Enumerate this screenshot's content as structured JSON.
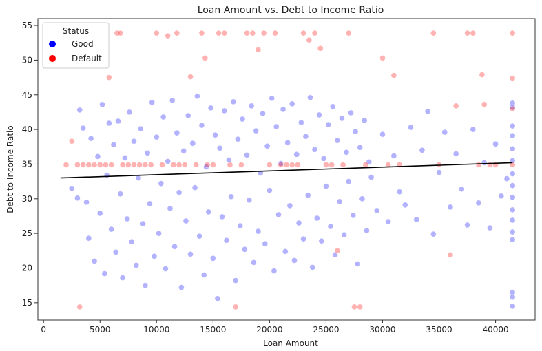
{
  "chart_data": {
    "type": "scatter",
    "title": "Loan Amount vs. Debt to Income Ratio",
    "xlabel": "Loan Amount",
    "ylabel": "Debt to Income Ratio",
    "xlim": [
      -500,
      43500
    ],
    "ylim": [
      12.5,
      56
    ],
    "xticks": [
      0,
      5000,
      10000,
      15000,
      20000,
      25000,
      30000,
      35000,
      40000
    ],
    "yticks": [
      15,
      20,
      25,
      30,
      35,
      40,
      45,
      50,
      55
    ],
    "legend": {
      "title": "Status",
      "placement": "top-left",
      "entries": [
        {
          "label": "Good",
          "color": "#0000ff"
        },
        {
          "label": "Default",
          "color": "#ff0000"
        }
      ]
    },
    "series": [
      {
        "name": "Good",
        "color": "#0000ff",
        "opacity": 0.3,
        "points": [
          [
            2500,
            31.5
          ],
          [
            3000,
            30.1
          ],
          [
            3200,
            42.8
          ],
          [
            3500,
            40.2
          ],
          [
            3800,
            29.5
          ],
          [
            4000,
            24.3
          ],
          [
            4200,
            38.7
          ],
          [
            4500,
            21.0
          ],
          [
            4800,
            36.1
          ],
          [
            5000,
            27.9
          ],
          [
            5200,
            43.6
          ],
          [
            5400,
            19.2
          ],
          [
            5600,
            33.4
          ],
          [
            5800,
            40.9
          ],
          [
            6000,
            25.6
          ],
          [
            6200,
            37.8
          ],
          [
            6400,
            22.3
          ],
          [
            6600,
            41.2
          ],
          [
            6800,
            30.7
          ],
          [
            7000,
            18.6
          ],
          [
            7200,
            35.9
          ],
          [
            7400,
            27.1
          ],
          [
            7600,
            42.5
          ],
          [
            7800,
            23.8
          ],
          [
            8000,
            38.3
          ],
          [
            8200,
            20.4
          ],
          [
            8400,
            33.0
          ],
          [
            8600,
            40.1
          ],
          [
            8800,
            26.4
          ],
          [
            9000,
            17.5
          ],
          [
            9200,
            36.6
          ],
          [
            9400,
            29.3
          ],
          [
            9600,
            43.9
          ],
          [
            9800,
            21.7
          ],
          [
            10000,
            38.9
          ],
          [
            10200,
            25.0
          ],
          [
            10400,
            32.2
          ],
          [
            10600,
            41.8
          ],
          [
            10800,
            19.9
          ],
          [
            11000,
            35.4
          ],
          [
            11200,
            28.6
          ],
          [
            11400,
            44.2
          ],
          [
            11600,
            23.1
          ],
          [
            11800,
            39.5
          ],
          [
            12000,
            30.9
          ],
          [
            12200,
            17.2
          ],
          [
            12400,
            36.9
          ],
          [
            12600,
            26.8
          ],
          [
            12800,
            42.0
          ],
          [
            13000,
            22.0
          ],
          [
            13200,
            38.0
          ],
          [
            13400,
            31.6
          ],
          [
            13600,
            44.8
          ],
          [
            13800,
            24.6
          ],
          [
            14000,
            40.6
          ],
          [
            14200,
            19.0
          ],
          [
            14400,
            34.6
          ],
          [
            14600,
            28.1
          ],
          [
            14800,
            43.1
          ],
          [
            15000,
            21.4
          ],
          [
            15200,
            39.2
          ],
          [
            15400,
            15.6
          ],
          [
            15600,
            37.3
          ],
          [
            15800,
            27.4
          ],
          [
            16000,
            42.7
          ],
          [
            16200,
            24.0
          ],
          [
            16400,
            35.6
          ],
          [
            16600,
            30.3
          ],
          [
            16800,
            44.0
          ],
          [
            17000,
            18.2
          ],
          [
            17200,
            38.6
          ],
          [
            17400,
            26.1
          ],
          [
            17600,
            41.5
          ],
          [
            17800,
            22.7
          ],
          [
            18000,
            36.3
          ],
          [
            18200,
            29.8
          ],
          [
            18400,
            43.4
          ],
          [
            18600,
            20.8
          ],
          [
            18800,
            39.8
          ],
          [
            19000,
            25.3
          ],
          [
            19200,
            33.7
          ],
          [
            19400,
            42.3
          ],
          [
            19600,
            23.5
          ],
          [
            19800,
            37.6
          ],
          [
            20000,
            31.2
          ],
          [
            20200,
            44.5
          ],
          [
            20400,
            19.6
          ],
          [
            20600,
            40.4
          ],
          [
            20800,
            27.7
          ],
          [
            21000,
            35.1
          ],
          [
            21200,
            42.9
          ],
          [
            21400,
            22.4
          ],
          [
            21600,
            38.1
          ],
          [
            21800,
            29.0
          ],
          [
            22000,
            43.7
          ],
          [
            22200,
            21.1
          ],
          [
            22400,
            36.4
          ],
          [
            22600,
            26.5
          ],
          [
            22800,
            41.0
          ],
          [
            23000,
            24.2
          ],
          [
            23200,
            39.0
          ],
          [
            23400,
            30.5
          ],
          [
            23600,
            44.6
          ],
          [
            23800,
            20.1
          ],
          [
            24000,
            37.1
          ],
          [
            24200,
            27.2
          ],
          [
            24400,
            42.1
          ],
          [
            24600,
            23.9
          ],
          [
            24800,
            35.8
          ],
          [
            25000,
            31.8
          ],
          [
            25200,
            40.7
          ],
          [
            25400,
            26.0
          ],
          [
            25600,
            43.3
          ],
          [
            25800,
            21.9
          ],
          [
            26000,
            38.4
          ],
          [
            26200,
            29.6
          ],
          [
            26400,
            41.6
          ],
          [
            26600,
            24.8
          ],
          [
            26800,
            36.7
          ],
          [
            27000,
            32.5
          ],
          [
            27200,
            42.4
          ],
          [
            27400,
            27.6
          ],
          [
            27600,
            39.7
          ],
          [
            27800,
            20.6
          ],
          [
            28000,
            37.4
          ],
          [
            28200,
            30.0
          ],
          [
            28400,
            41.3
          ],
          [
            28600,
            25.4
          ],
          [
            28800,
            35.3
          ],
          [
            29000,
            33.1
          ],
          [
            29500,
            28.3
          ],
          [
            30000,
            39.3
          ],
          [
            30500,
            26.7
          ],
          [
            31000,
            36.2
          ],
          [
            31500,
            31.0
          ],
          [
            32000,
            29.1
          ],
          [
            32500,
            40.3
          ],
          [
            33000,
            27.0
          ],
          [
            33500,
            37.0
          ],
          [
            34000,
            42.6
          ],
          [
            34500,
            24.9
          ],
          [
            35000,
            33.8
          ],
          [
            35500,
            39.6
          ],
          [
            36000,
            28.8
          ],
          [
            36500,
            36.5
          ],
          [
            37000,
            31.4
          ],
          [
            37500,
            26.2
          ],
          [
            38000,
            40.0
          ],
          [
            38500,
            29.4
          ],
          [
            39000,
            35.2
          ],
          [
            39500,
            25.8
          ],
          [
            40000,
            37.9
          ],
          [
            40500,
            30.4
          ],
          [
            41000,
            32.9
          ],
          [
            41500,
            43.8
          ],
          [
            41500,
            40.5
          ],
          [
            41500,
            37.2
          ],
          [
            41500,
            33.6
          ],
          [
            41500,
            30.2
          ],
          [
            41500,
            26.9
          ],
          [
            41500,
            24.1
          ],
          [
            41500,
            16.5
          ],
          [
            41500,
            15.8
          ],
          [
            41500,
            14.5
          ],
          [
            41500,
            43.2
          ],
          [
            41500,
            39.1
          ],
          [
            41500,
            35.5
          ],
          [
            41500,
            31.9
          ],
          [
            41500,
            28.4
          ],
          [
            41500,
            25.2
          ]
        ]
      },
      {
        "name": "Default",
        "color": "#ff0000",
        "opacity": 0.3,
        "points": [
          [
            2000,
            34.9
          ],
          [
            2500,
            38.3
          ],
          [
            3000,
            34.9
          ],
          [
            3200,
            14.4
          ],
          [
            3500,
            34.9
          ],
          [
            4000,
            34.9
          ],
          [
            4500,
            34.9
          ],
          [
            5000,
            34.9
          ],
          [
            5500,
            34.9
          ],
          [
            5800,
            47.5
          ],
          [
            6000,
            34.9
          ],
          [
            6500,
            53.9
          ],
          [
            6800,
            53.9
          ],
          [
            7000,
            34.9
          ],
          [
            7500,
            34.9
          ],
          [
            8000,
            34.9
          ],
          [
            8500,
            34.9
          ],
          [
            9000,
            34.9
          ],
          [
            9500,
            34.9
          ],
          [
            10000,
            53.9
          ],
          [
            10500,
            34.9
          ],
          [
            11000,
            53.5
          ],
          [
            11500,
            34.9
          ],
          [
            11800,
            53.9
          ],
          [
            12000,
            34.9
          ],
          [
            12500,
            34.9
          ],
          [
            13000,
            47.6
          ],
          [
            13500,
            34.9
          ],
          [
            14000,
            53.9
          ],
          [
            14300,
            50.3
          ],
          [
            14500,
            34.9
          ],
          [
            15000,
            34.9
          ],
          [
            15500,
            53.9
          ],
          [
            16000,
            53.9
          ],
          [
            16500,
            34.9
          ],
          [
            17000,
            14.4
          ],
          [
            17500,
            34.9
          ],
          [
            18000,
            53.9
          ],
          [
            18500,
            53.9
          ],
          [
            19000,
            51.5
          ],
          [
            19500,
            53.9
          ],
          [
            20000,
            34.9
          ],
          [
            20500,
            53.9
          ],
          [
            21000,
            34.9
          ],
          [
            21500,
            34.9
          ],
          [
            22000,
            34.9
          ],
          [
            22500,
            34.9
          ],
          [
            23000,
            53.9
          ],
          [
            23500,
            52.9
          ],
          [
            24000,
            53.9
          ],
          [
            24500,
            51.7
          ],
          [
            25000,
            34.9
          ],
          [
            25500,
            34.9
          ],
          [
            26000,
            22.5
          ],
          [
            26500,
            34.9
          ],
          [
            27000,
            53.9
          ],
          [
            27500,
            14.4
          ],
          [
            28000,
            14.4
          ],
          [
            28500,
            34.9
          ],
          [
            30000,
            50.3
          ],
          [
            30500,
            34.9
          ],
          [
            31000,
            47.8
          ],
          [
            31500,
            34.9
          ],
          [
            34500,
            53.9
          ],
          [
            35000,
            34.9
          ],
          [
            36000,
            21.9
          ],
          [
            36500,
            43.4
          ],
          [
            37500,
            53.9
          ],
          [
            38000,
            53.9
          ],
          [
            38500,
            34.9
          ],
          [
            38800,
            47.9
          ],
          [
            39000,
            43.6
          ],
          [
            39500,
            34.9
          ],
          [
            40000,
            34.9
          ],
          [
            41500,
            53.9
          ],
          [
            41500,
            47.4
          ],
          [
            41500,
            43.0
          ],
          [
            41500,
            34.9
          ]
        ]
      }
    ],
    "trendline": {
      "color": "#000000",
      "x": [
        1500,
        41500
      ],
      "y": [
        33.0,
        35.2
      ]
    }
  }
}
